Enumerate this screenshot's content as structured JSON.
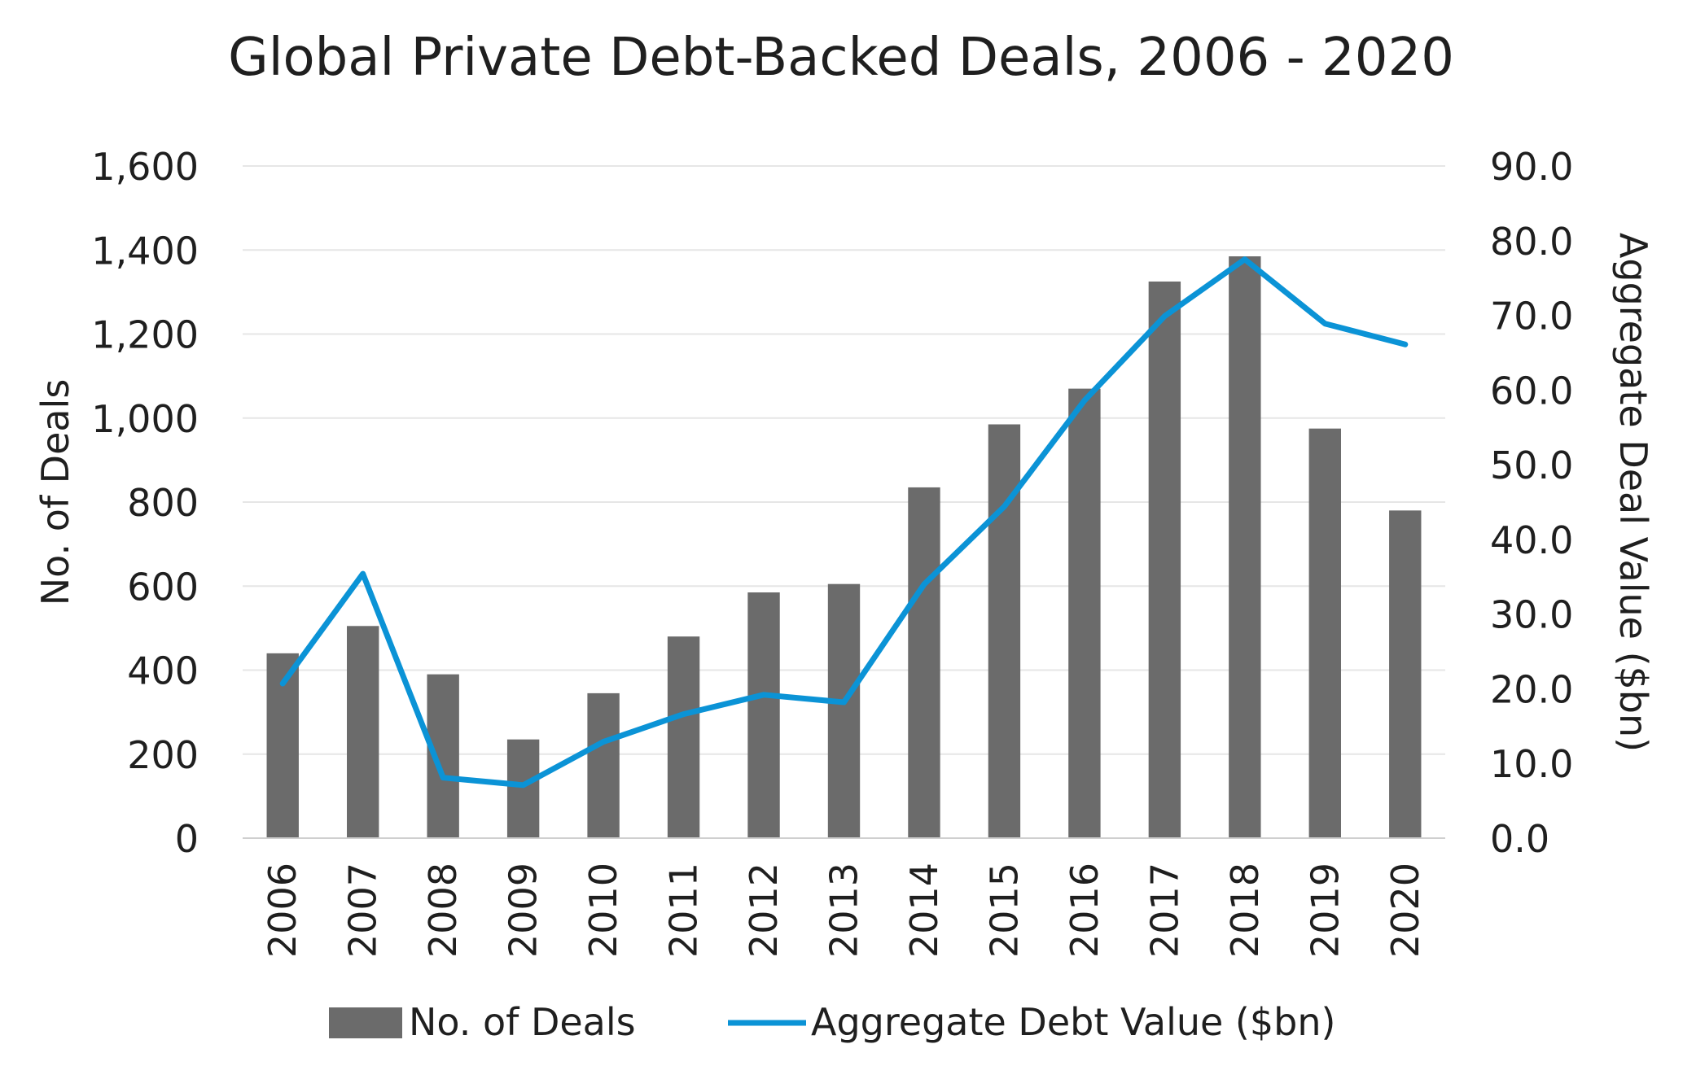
{
  "chart_data": {
    "type": "bar",
    "title": "Global Private Debt-Backed Deals, 2006 - 2020",
    "categories": [
      "2006",
      "2007",
      "2008",
      "2009",
      "2010",
      "2011",
      "2012",
      "2013",
      "2014",
      "2015",
      "2016",
      "2017",
      "2018",
      "2019",
      "2020"
    ],
    "series": [
      {
        "name": "No. of Deals",
        "type": "bar",
        "axis": "left",
        "color": "#6b6b6b",
        "values": [
          440,
          505,
          390,
          235,
          345,
          480,
          585,
          605,
          835,
          985,
          1070,
          1325,
          1385,
          975,
          780
        ]
      },
      {
        "name": "Aggregate Debt Value ($bn)",
        "type": "line",
        "axis": "right",
        "color": "#0b93d6",
        "values": [
          20.7,
          35.4,
          8.1,
          7.1,
          12.9,
          16.6,
          19.2,
          18.2,
          34.0,
          44.4,
          58.6,
          69.9,
          77.5,
          68.9,
          66.1
        ]
      }
    ],
    "ylabel_left": "No. of Deals",
    "ylabel_right": "Aggregate Deal Value ($bn)",
    "ylim_left": [
      0,
      1600
    ],
    "ylim_right": [
      0,
      90
    ],
    "yticks_left": [
      "0",
      "200",
      "400",
      "600",
      "800",
      "1,000",
      "1,200",
      "1,400",
      "1,600"
    ],
    "yticks_right": [
      "0.0",
      "10.0",
      "20.0",
      "30.0",
      "40.0",
      "50.0",
      "60.0",
      "70.0",
      "80.0",
      "90.0"
    ],
    "grid": true,
    "legend_position": "bottom"
  }
}
